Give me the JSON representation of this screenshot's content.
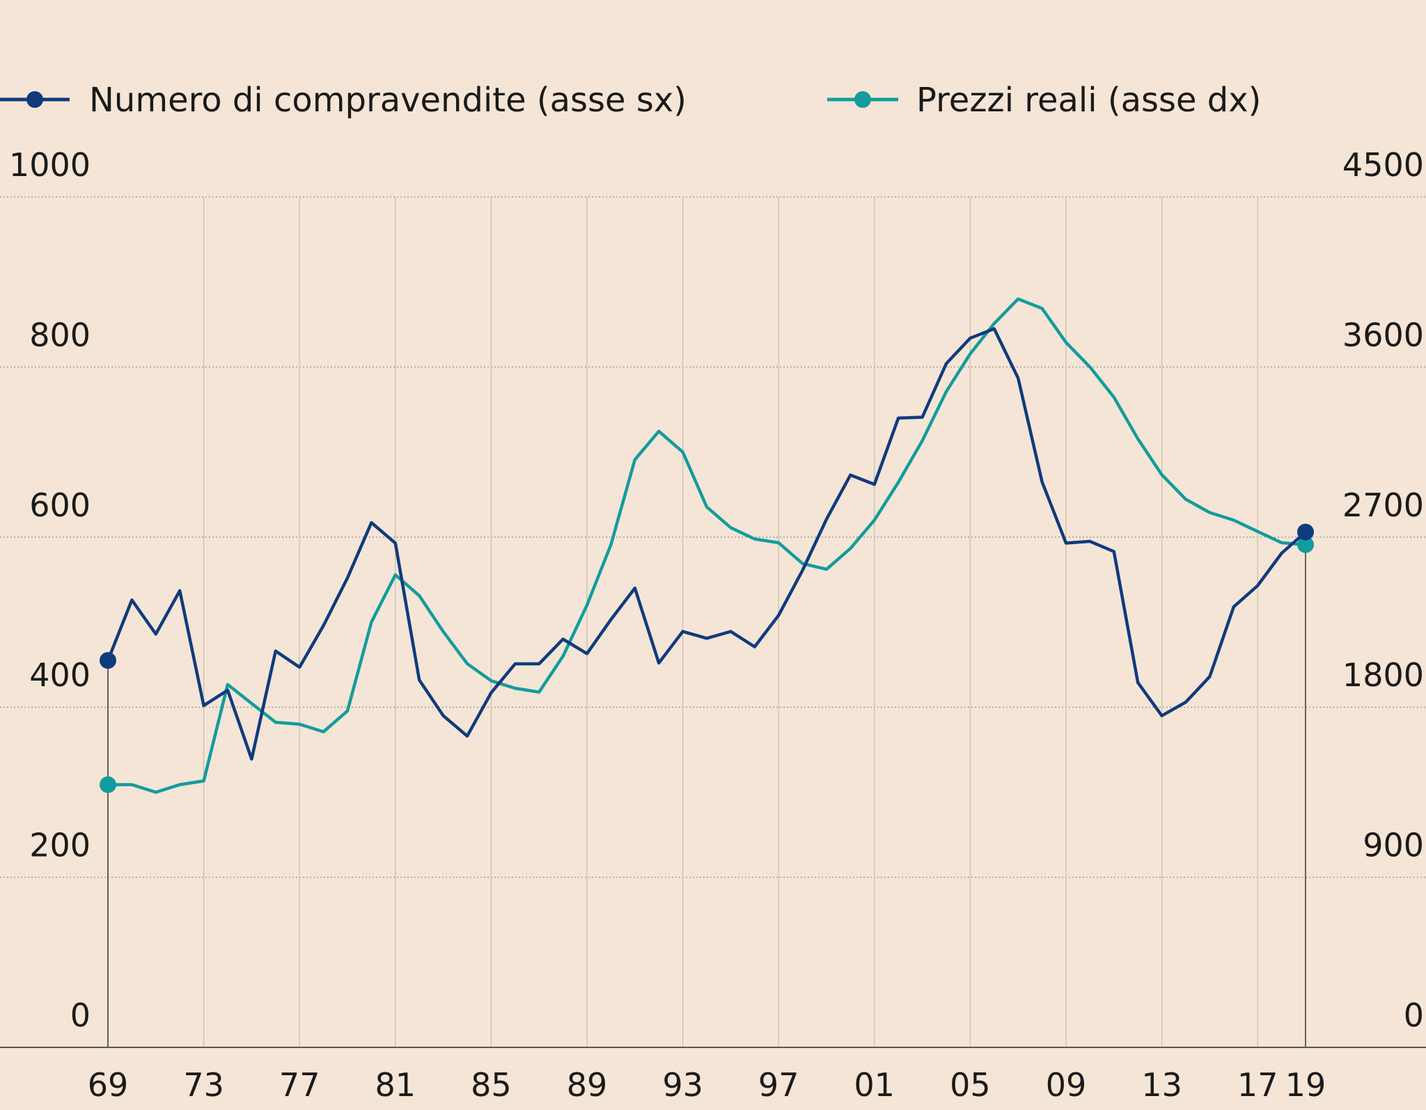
{
  "chart_data": {
    "type": "line",
    "legend_position": "top-left",
    "grid": true,
    "x": [
      1969,
      1970,
      1971,
      1972,
      1973,
      1974,
      1975,
      1976,
      1977,
      1978,
      1979,
      1980,
      1981,
      1982,
      1983,
      1984,
      1985,
      1986,
      1987,
      1988,
      1989,
      1990,
      1991,
      1992,
      1993,
      1994,
      1995,
      1996,
      1997,
      1998,
      1999,
      2000,
      2001,
      2002,
      2003,
      2004,
      2005,
      2006,
      2007,
      2008,
      2009,
      2010,
      2011,
      2012,
      2013,
      2014,
      2015,
      2016,
      2017,
      2018,
      2019
    ],
    "x_tick_labels": [
      "69",
      "73",
      "77",
      "81",
      "85",
      "89",
      "93",
      "97",
      "01",
      "05",
      "09",
      "13",
      "17",
      "19"
    ],
    "x_tick_values": [
      1969,
      1973,
      1977,
      1981,
      1985,
      1989,
      1993,
      1997,
      2001,
      2005,
      2009,
      2013,
      2017,
      2019
    ],
    "y_left": {
      "ylim": [
        0,
        1000
      ],
      "ticks": [
        "0",
        "200",
        "400",
        "600",
        "800",
        "1000"
      ]
    },
    "y_right": {
      "ylim": [
        0,
        4500
      ],
      "ticks": [
        "0",
        "900",
        "1800",
        "2700",
        "3600",
        "4500"
      ]
    },
    "series": [
      {
        "name": "Numero di compravendite (asse sx)",
        "axis": "left",
        "color": "#0f3b7d",
        "values": [
          455,
          526,
          486,
          537,
          402,
          420,
          339,
          466,
          447,
          496,
          552,
          617,
          593,
          432,
          390,
          366,
          417,
          451,
          451,
          480,
          463,
          503,
          540,
          452,
          489,
          481,
          489,
          471,
          508,
          561,
          621,
          673,
          662,
          740,
          741,
          804,
          834,
          845,
          787,
          665,
          593,
          595,
          583,
          429,
          390,
          406,
          436,
          518,
          543,
          581,
          606
        ]
      },
      {
        "name": "Prezzi reali (asse dx)",
        "axis": "right",
        "color": "#129c9e",
        "values": [
          1390,
          1390,
          1350,
          1390,
          1410,
          1920,
          1820,
          1720,
          1710,
          1670,
          1780,
          2250,
          2500,
          2390,
          2200,
          2030,
          1940,
          1900,
          1880,
          2070,
          2340,
          2660,
          3110,
          3260,
          3150,
          2860,
          2750,
          2690,
          2670,
          2560,
          2530,
          2640,
          2790,
          2990,
          3210,
          3470,
          3670,
          3830,
          3960,
          3910,
          3730,
          3600,
          3440,
          3220,
          3030,
          2900,
          2830,
          2790,
          2730,
          2670,
          2660
        ]
      }
    ]
  }
}
